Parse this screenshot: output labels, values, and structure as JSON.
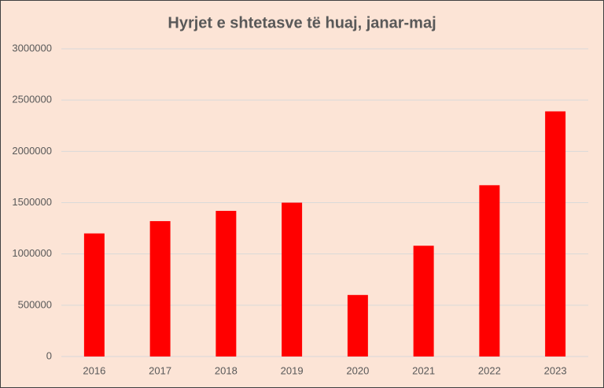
{
  "chart_data": {
    "type": "bar",
    "title": "Hyrjet e shtetasve të huaj, janar-maj",
    "categories": [
      "2016",
      "2017",
      "2018",
      "2019",
      "2020",
      "2021",
      "2022",
      "2023"
    ],
    "values": [
      1200000,
      1320000,
      1420000,
      1500000,
      600000,
      1080000,
      1670000,
      2390000
    ],
    "color": "#ff0000",
    "ylim": [
      0,
      3000000
    ],
    "yticks": [
      0,
      500000,
      1000000,
      1500000,
      2000000,
      2500000,
      3000000
    ],
    "grid": true
  }
}
